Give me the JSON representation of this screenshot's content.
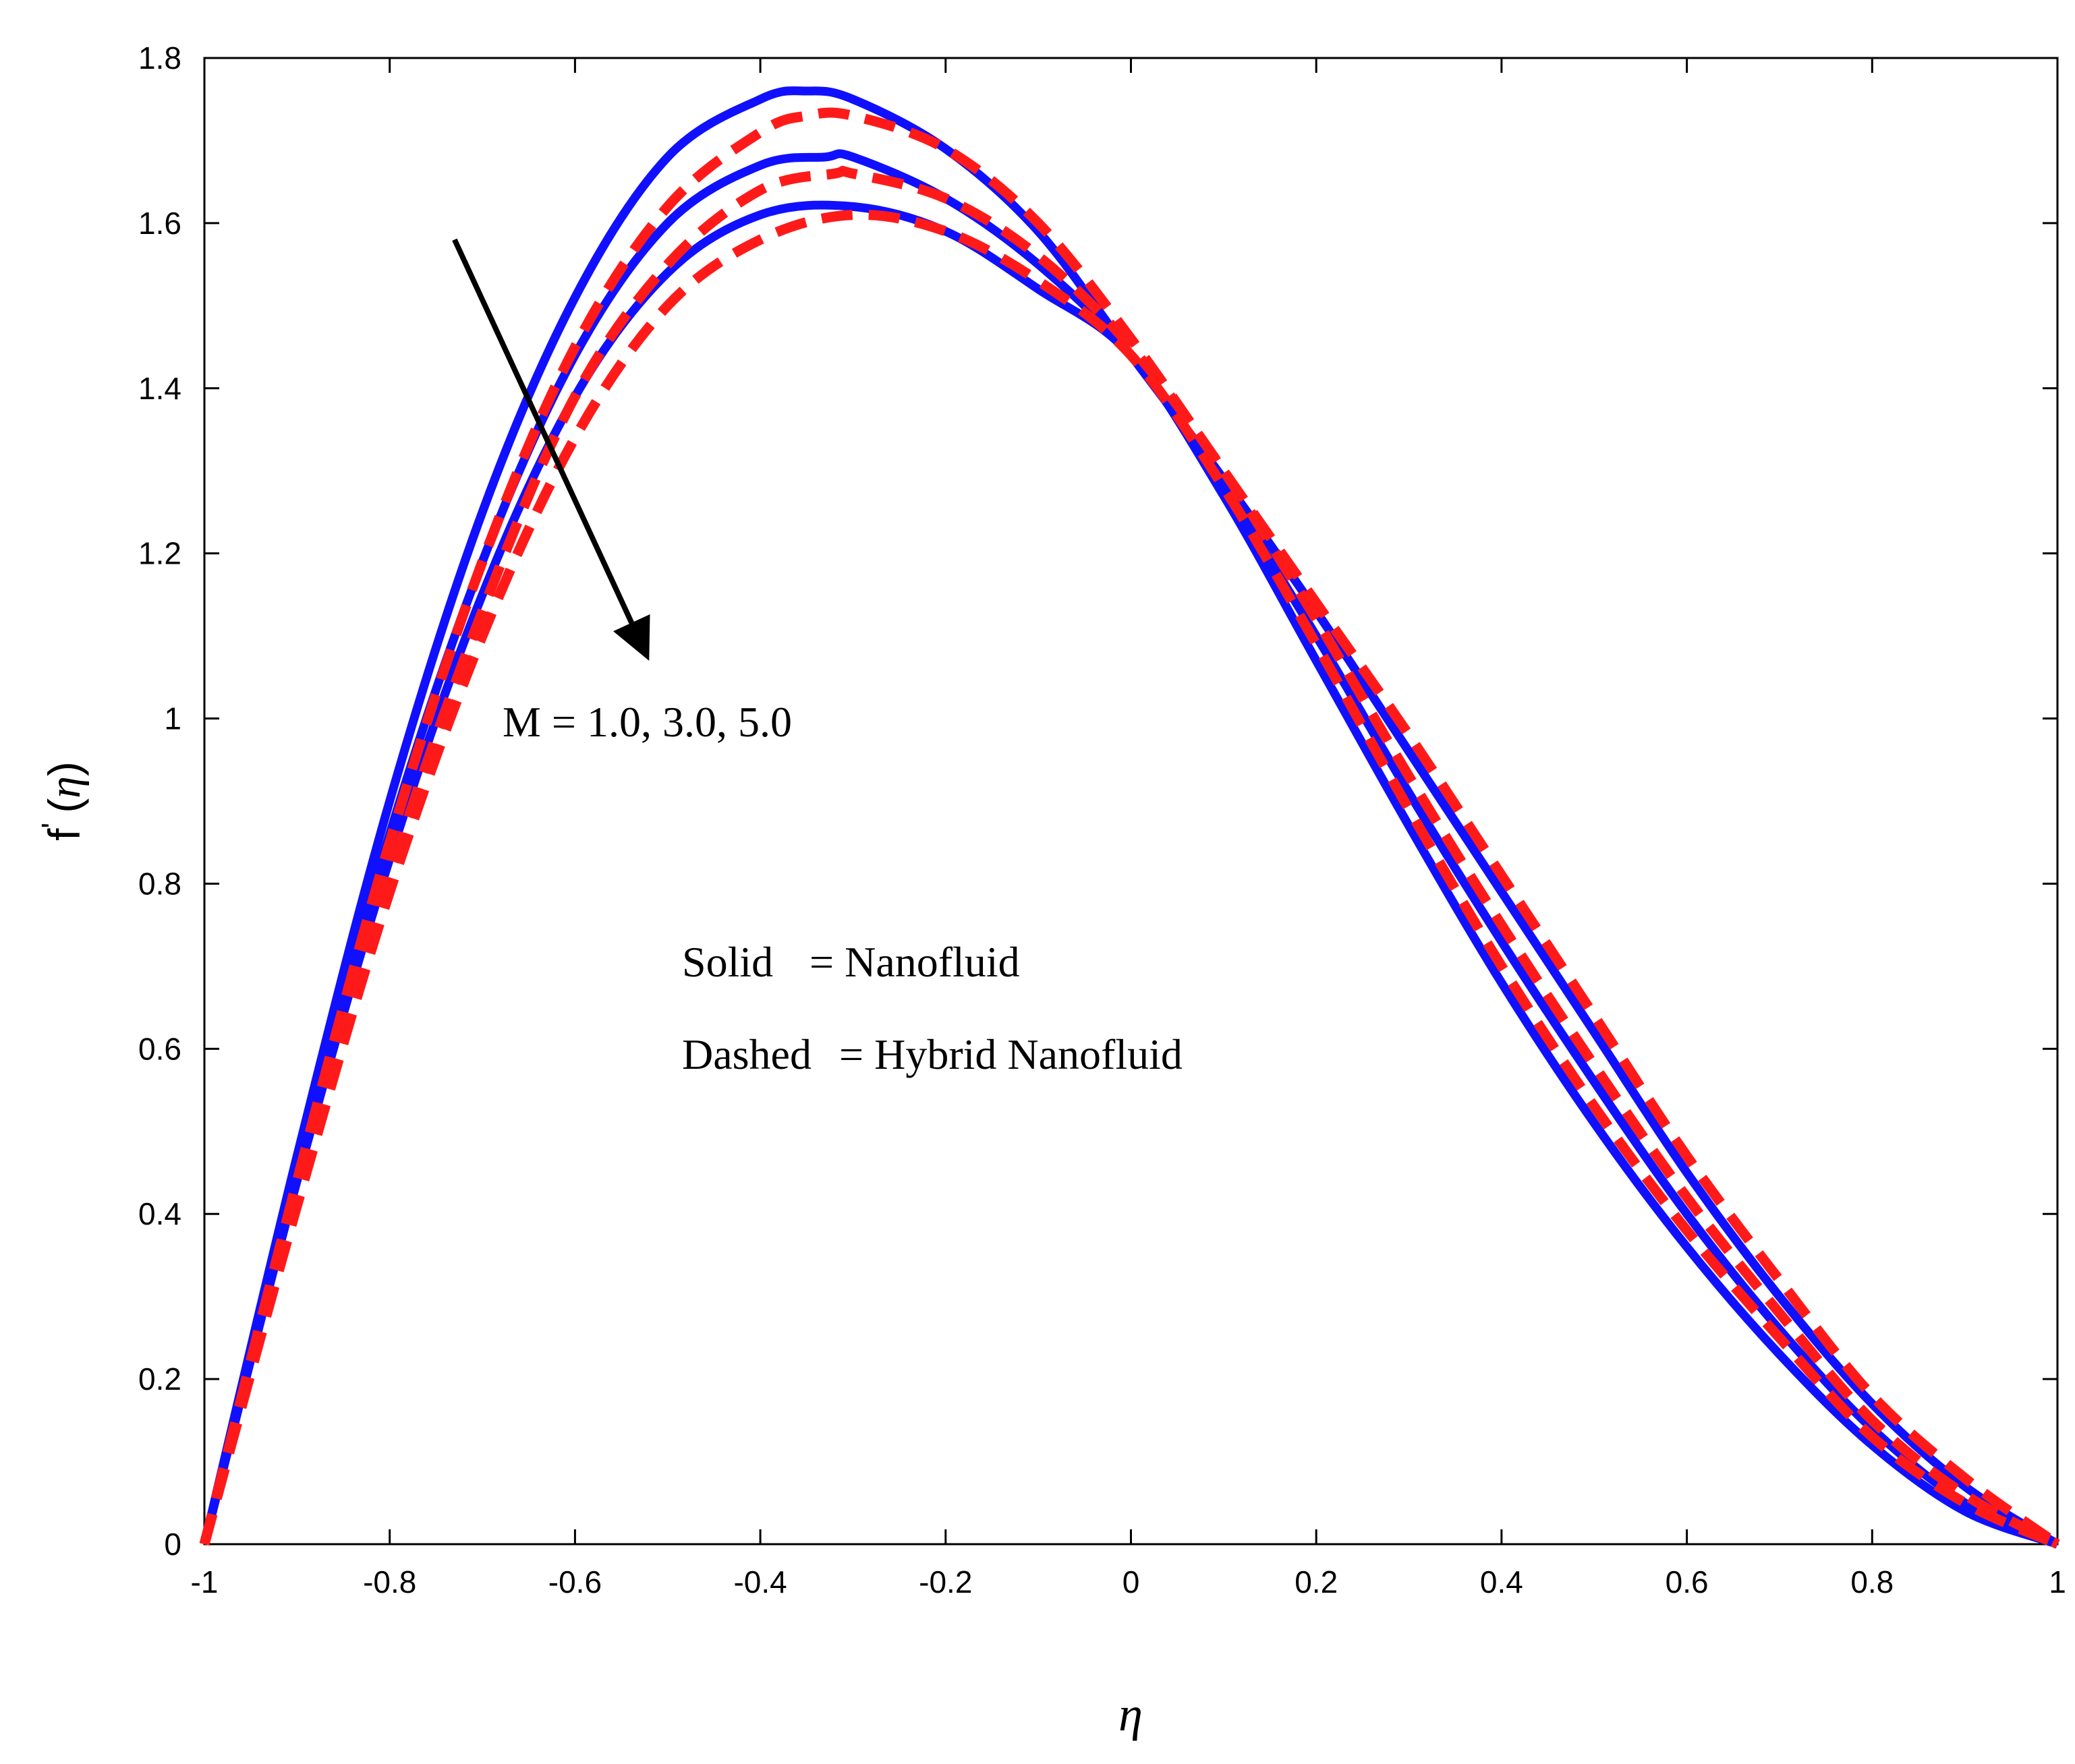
{
  "chart_data": {
    "type": "line",
    "xlabel": "η",
    "ylabel": {
      "f": "f",
      "prime": "'",
      "open": "(",
      "eta": "η",
      "close": ")"
    },
    "xlim": [
      -1,
      1
    ],
    "ylim": [
      0,
      1.8
    ],
    "xticks": [
      "-1",
      "-0.8",
      "-0.6",
      "-0.4",
      "-0.2",
      "0",
      "0.2",
      "0.4",
      "0.6",
      "0.8",
      "1"
    ],
    "yticks": [
      "0",
      "0.2",
      "0.4",
      "0.6",
      "0.8",
      "1",
      "1.2",
      "1.4",
      "1.6",
      "1.8"
    ],
    "grid": false,
    "colors": {
      "solid": "#1010ff",
      "dashed": "#ff1a1a",
      "arrow": "#000000"
    },
    "annotations": {
      "parameter": "M = 1.0, 3.0, 5.0",
      "solid_legend": {
        "key": "Solid",
        "value": "= Nanofluid"
      },
      "dashed_legend": {
        "key": "Dashed",
        "value": "= Hybrid Nanofluid"
      }
    },
    "series": [
      {
        "name": "Nanofluid, M = 1.0",
        "style": "solid",
        "x": [
          -1,
          -0.9,
          -0.8,
          -0.7,
          -0.6,
          -0.5,
          -0.4,
          -0.35,
          -0.3,
          -0.2,
          -0.1,
          0,
          0.1,
          0.2,
          0.3,
          0.4,
          0.5,
          0.6,
          0.7,
          0.8,
          0.9,
          1
        ],
        "y": [
          0,
          0.47,
          0.9,
          1.25,
          1.51,
          1.68,
          1.75,
          1.76,
          1.75,
          1.69,
          1.59,
          1.44,
          1.29,
          1.13,
          0.96,
          0.79,
          0.62,
          0.45,
          0.3,
          0.17,
          0.07,
          0
        ]
      },
      {
        "name": "Hybrid Nanofluid, M = 1.0",
        "style": "dashed",
        "x": [
          -1,
          -0.9,
          -0.8,
          -0.7,
          -0.6,
          -0.5,
          -0.4,
          -0.35,
          -0.3,
          -0.2,
          -0.1,
          0,
          0.1,
          0.2,
          0.3,
          0.4,
          0.5,
          0.6,
          0.7,
          0.8,
          0.9,
          1
        ],
        "y": [
          0,
          0.44,
          0.85,
          1.19,
          1.45,
          1.62,
          1.71,
          1.73,
          1.73,
          1.69,
          1.6,
          1.46,
          1.3,
          1.14,
          0.98,
          0.81,
          0.64,
          0.47,
          0.32,
          0.18,
          0.08,
          0
        ]
      },
      {
        "name": "Nanofluid, M = 3.0",
        "style": "solid",
        "x": [
          -1,
          -0.9,
          -0.8,
          -0.7,
          -0.6,
          -0.5,
          -0.4,
          -0.33,
          -0.3,
          -0.2,
          -0.1,
          0,
          0.1,
          0.2,
          0.3,
          0.4,
          0.5,
          0.6,
          0.7,
          0.8,
          0.9,
          1
        ],
        "y": [
          0,
          0.45,
          0.86,
          1.19,
          1.44,
          1.6,
          1.67,
          1.68,
          1.68,
          1.63,
          1.55,
          1.44,
          1.28,
          1.1,
          0.91,
          0.73,
          0.56,
          0.4,
          0.26,
          0.14,
          0.05,
          0
        ]
      },
      {
        "name": "Hybrid Nanofluid, M = 3.0",
        "style": "dashed",
        "x": [
          -1,
          -0.9,
          -0.8,
          -0.7,
          -0.6,
          -0.5,
          -0.4,
          -0.32,
          -0.3,
          -0.2,
          -0.1,
          0,
          0.1,
          0.2,
          0.3,
          0.4,
          0.5,
          0.6,
          0.7,
          0.8,
          0.9,
          1
        ],
        "y": [
          0,
          0.42,
          0.81,
          1.13,
          1.39,
          1.55,
          1.64,
          1.66,
          1.66,
          1.63,
          1.56,
          1.45,
          1.3,
          1.12,
          0.93,
          0.75,
          0.58,
          0.42,
          0.28,
          0.15,
          0.06,
          0
        ]
      },
      {
        "name": "Nanofluid, M = 5.0",
        "style": "solid",
        "x": [
          -1,
          -0.9,
          -0.8,
          -0.7,
          -0.6,
          -0.5,
          -0.4,
          -0.3,
          -0.2,
          -0.1,
          0,
          0.1,
          0.2,
          0.3,
          0.4,
          0.5,
          0.6,
          0.7,
          0.8,
          0.9,
          1
        ],
        "y": [
          0,
          0.44,
          0.83,
          1.15,
          1.39,
          1.54,
          1.61,
          1.62,
          1.59,
          1.52,
          1.44,
          1.27,
          1.07,
          0.87,
          0.68,
          0.51,
          0.36,
          0.23,
          0.12,
          0.04,
          0
        ]
      },
      {
        "name": "Hybrid Nanofluid, M = 5.0",
        "style": "dashed",
        "x": [
          -1,
          -0.9,
          -0.8,
          -0.7,
          -0.6,
          -0.5,
          -0.4,
          -0.3,
          -0.2,
          -0.1,
          0,
          0.1,
          0.2,
          0.3,
          0.4,
          0.5,
          0.6,
          0.7,
          0.8,
          0.9,
          1
        ],
        "y": [
          0,
          0.41,
          0.79,
          1.1,
          1.34,
          1.5,
          1.58,
          1.61,
          1.59,
          1.53,
          1.44,
          1.28,
          1.09,
          0.89,
          0.7,
          0.53,
          0.38,
          0.25,
          0.13,
          0.05,
          0
        ]
      }
    ],
    "arrow": {
      "from": {
        "x": -0.73,
        "y": 1.58
      },
      "to": {
        "x": -0.52,
        "y": 1.07
      }
    }
  }
}
